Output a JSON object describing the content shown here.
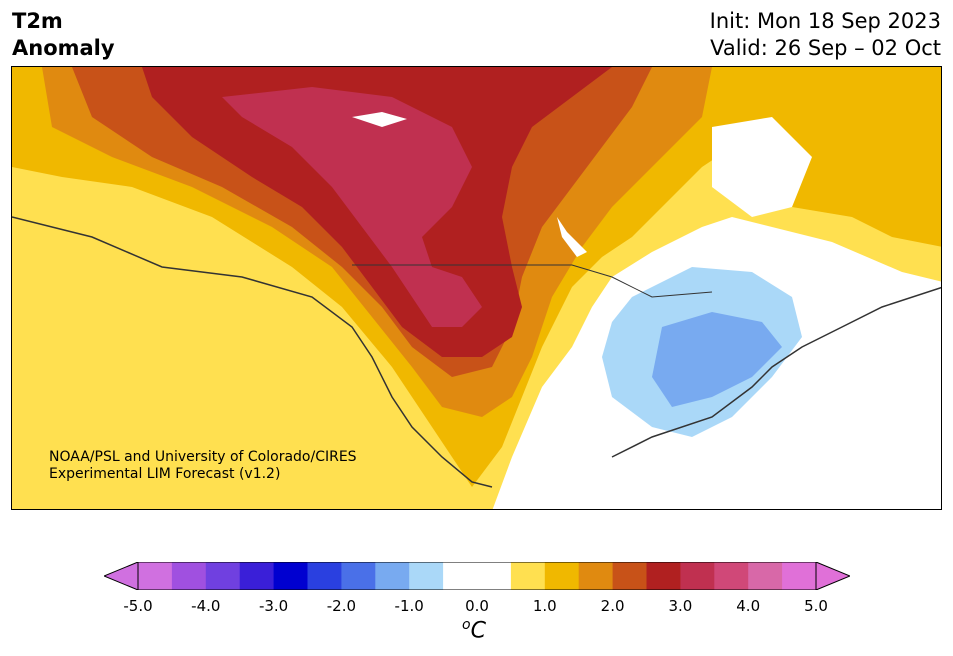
{
  "title": {
    "variable_line1": "T2m",
    "variable_line2": "Anomaly",
    "init": "Init: Mon 18 Sep 2023",
    "valid": "Valid: 26 Sep – 02 Oct"
  },
  "credit": {
    "line1": "NOAA/PSL and University of Colorado/CIRES",
    "line2": "Experimental LIM Forecast (v1.2)"
  },
  "colorbar": {
    "unit_base": "C",
    "unit_sup": "o",
    "tick_labels": [
      "-5.0",
      "-4.0",
      "-3.0",
      "-2.0",
      "-1.0",
      "0.0",
      "1.0",
      "2.0",
      "3.0",
      "4.0",
      "5.0"
    ],
    "colors": [
      "#d070e0",
      "#a050e0",
      "#7040e0",
      "#3a1fd8",
      "#0000d0",
      "#2a40e0",
      "#4a70e8",
      "#78aaf0",
      "#aad8f8",
      "#ffffff",
      "#ffffff",
      "#ffe050",
      "#f0b800",
      "#e08a10",
      "#c85218",
      "#b02020",
      "#c03050",
      "#d04878",
      "#d868a8",
      "#e070d8"
    ],
    "under_color": "#d070e0",
    "over_color": "#e070d8"
  },
  "map_colors": {
    "land_border": "#333333",
    "ocean": "#ffffff"
  }
}
